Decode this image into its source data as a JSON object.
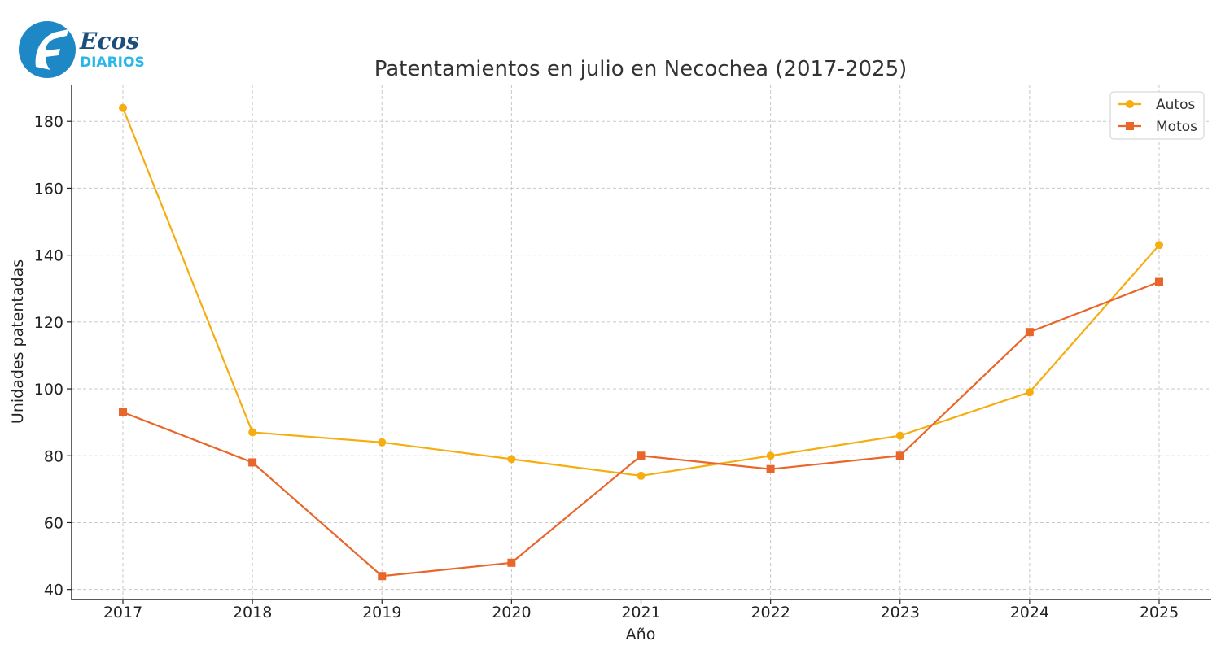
{
  "logo": {
    "text_top": "Ecos",
    "text_bottom": "DIARIOS",
    "colors": {
      "dark": "#1c4f7c",
      "light": "#29b6e8"
    }
  },
  "chart_data": {
    "type": "line",
    "title": "Patentamientos en julio en Necochea (2017-2025)",
    "xlabel": "Año",
    "ylabel": "Unidades patentadas",
    "x": [
      2017,
      2018,
      2019,
      2020,
      2021,
      2022,
      2023,
      2024,
      2025
    ],
    "ylim": [
      37,
      191
    ],
    "yticks": [
      40,
      60,
      80,
      100,
      120,
      140,
      160,
      180
    ],
    "grid": true,
    "legend_position": "top-right",
    "series": [
      {
        "name": "Autos",
        "marker": "circle",
        "color": "#f5ad0f",
        "values": [
          184,
          87,
          84,
          79,
          74,
          80,
          86,
          99,
          143
        ]
      },
      {
        "name": "Motos",
        "marker": "square",
        "color": "#e9662a",
        "values": [
          93,
          78,
          44,
          48,
          80,
          76,
          80,
          117,
          132
        ]
      }
    ]
  }
}
